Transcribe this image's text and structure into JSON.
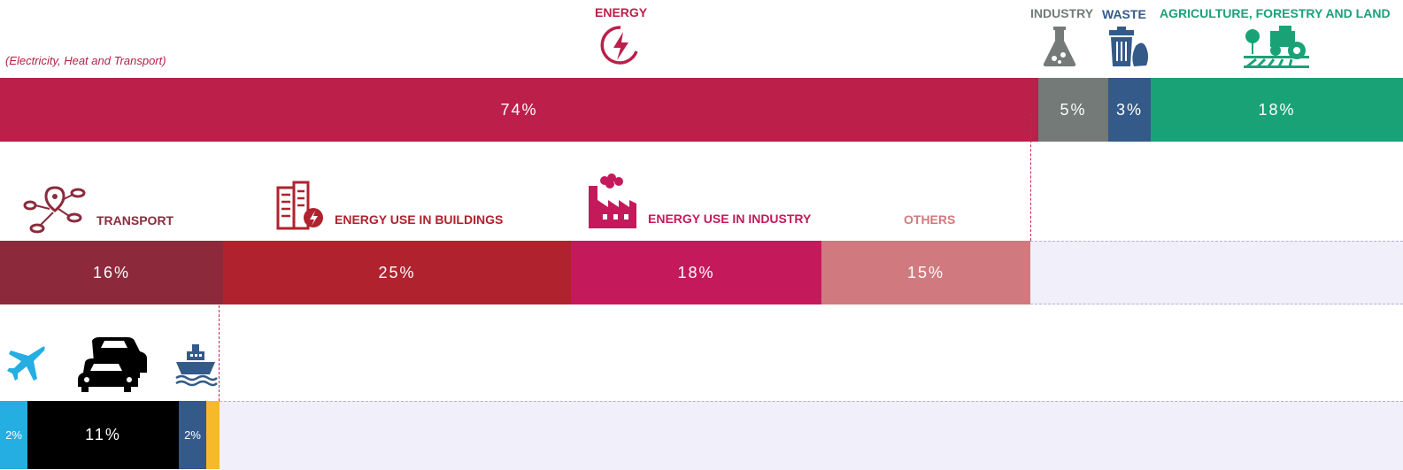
{
  "headers": {
    "energy": "ENERGY",
    "energy_sub": "(Electricity, Heat and Transport)",
    "industry": "INDUSTRY",
    "waste": "WASTE",
    "agriculture": "AGRICULTURE, FORESTRY AND LAND"
  },
  "icons": {
    "energy": "lightning-bolt-icon",
    "industry": "flask-icon",
    "waste": "trash-bin-icon",
    "agriculture": "tractor-icon",
    "transport": "route-pin-icon",
    "buildings": "building-icon",
    "energy_industry": "factory-icon",
    "aviation": "airplane-icon",
    "road": "cars-icon",
    "shipping": "ship-icon"
  },
  "chart_data": [
    {
      "type": "bar",
      "title": "",
      "categories": [
        "Energy",
        "Industry",
        "Waste",
        "Agriculture, Forestry and Land"
      ],
      "values": [
        74,
        5,
        3,
        18
      ],
      "labels": [
        "74%",
        "5%",
        "3%",
        "18%"
      ],
      "colors": [
        "#bb1f4a",
        "#737a77",
        "#335a89",
        "#1aa277"
      ]
    },
    {
      "type": "bar",
      "title": "",
      "categories": [
        "Transport",
        "Energy use in buildings",
        "Energy use in industry",
        "Others"
      ],
      "labels_text": [
        "TRANSPORT",
        "ENERGY USE IN BUILDINGS",
        "ENERGY USE IN INDUSTRY",
        "OTHERS"
      ],
      "values": [
        16,
        25,
        18,
        15
      ],
      "labels": [
        "16%",
        "25%",
        "18%",
        "15%"
      ],
      "colors": [
        "#8c2a3c",
        "#b0222e",
        "#c41a5c",
        "#d07a7f"
      ]
    },
    {
      "type": "bar",
      "title": "",
      "categories": [
        "Aviation",
        "Road",
        "Shipping",
        "Other"
      ],
      "values": [
        2,
        11,
        2,
        1
      ],
      "labels": [
        "2%",
        "11%",
        "2%",
        ""
      ],
      "colors": [
        "#24aee2",
        "#000000",
        "#335a89",
        "#f7b92c"
      ]
    }
  ]
}
